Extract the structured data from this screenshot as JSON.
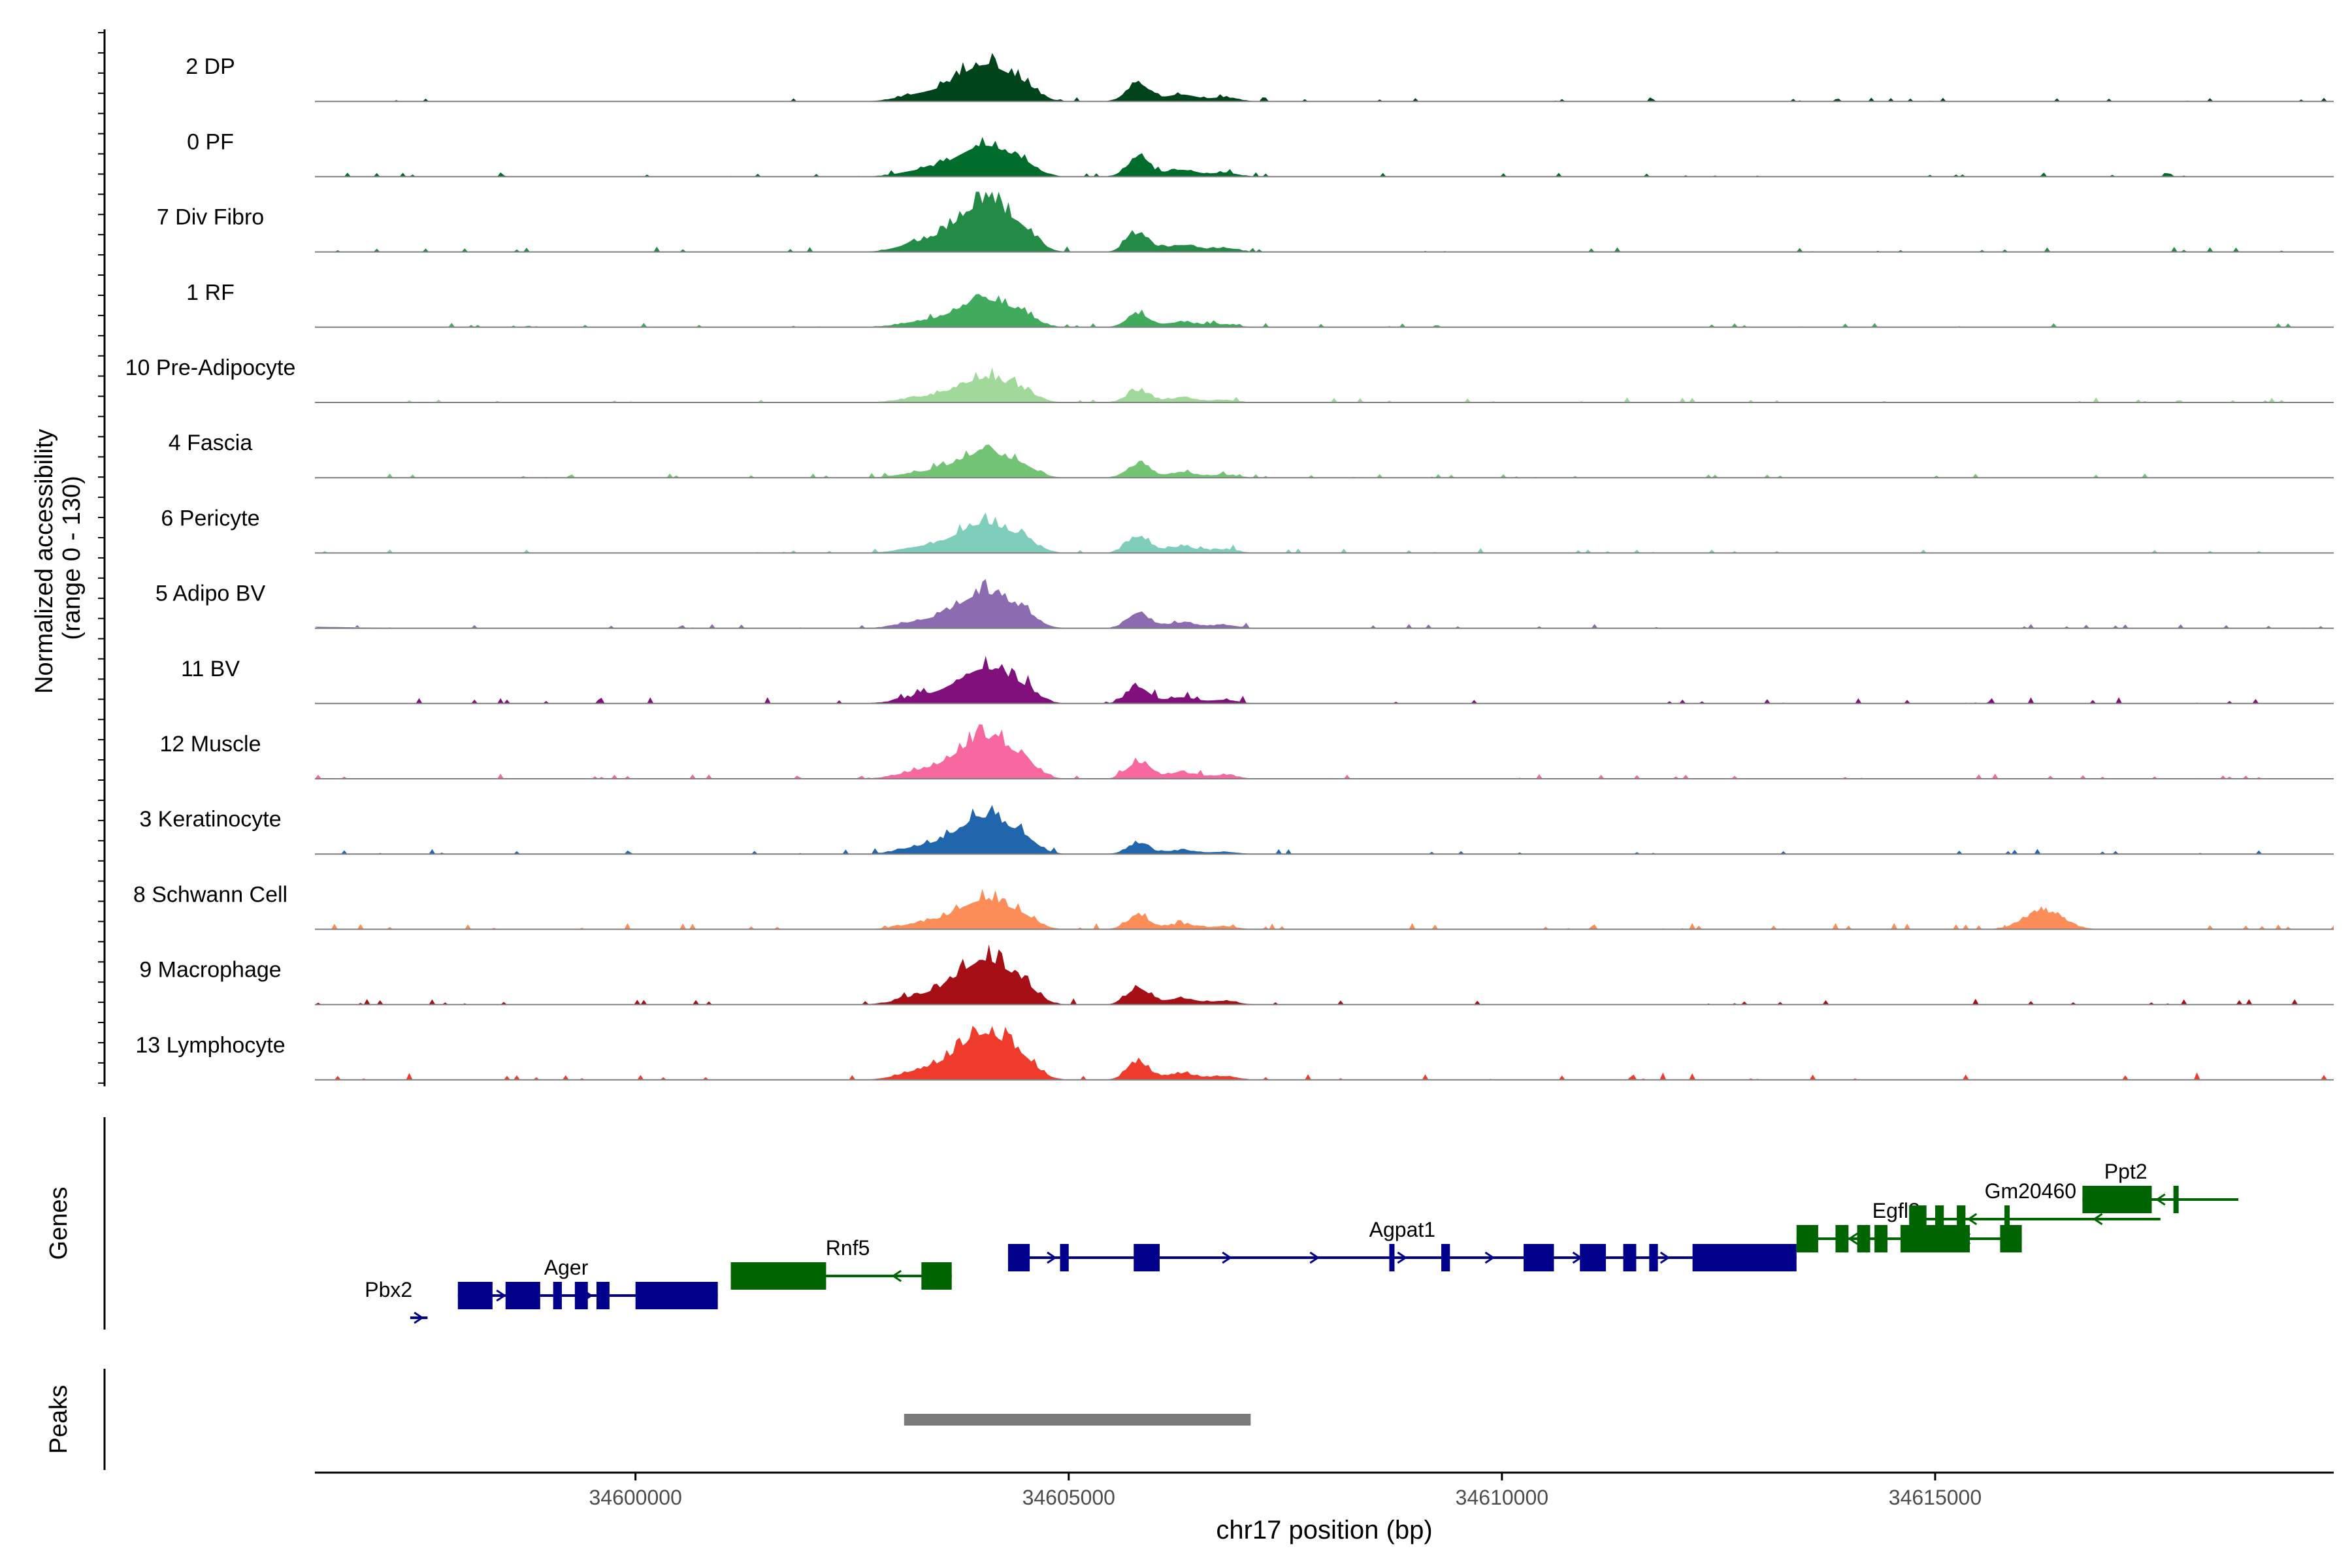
{
  "chart_data": {
    "type": "area",
    "title": "",
    "ylabel_line1": "Normalized accessibility",
    "ylabel_line2": "(range 0 - 130)",
    "yrange": [
      0,
      130
    ],
    "xlabel": "chr17 position (bp)",
    "xlim": [
      34596300,
      34619600
    ],
    "xticks": [
      {
        "value": 34600000,
        "label": "34600000"
      },
      {
        "value": 34605000,
        "label": "34605000"
      },
      {
        "value": 34610000,
        "label": "34610000"
      },
      {
        "value": 34615000,
        "label": "34615000"
      }
    ],
    "panel_labels": {
      "genes": "Genes",
      "peaks": "Peaks"
    },
    "tracks": [
      {
        "name": "2 DP",
        "color": "#00441b",
        "peak1": 1.0,
        "peak2": 0.55,
        "noise": 0.08
      },
      {
        "name": "0 PF",
        "color": "#006d2c",
        "peak1": 0.85,
        "peak2": 0.55,
        "noise": 0.08
      },
      {
        "name": "7 Div Fibro",
        "color": "#238b45",
        "peak1": 1.3,
        "peak2": 0.55,
        "noise": 0.1
      },
      {
        "name": "1 RF",
        "color": "#41ab5d",
        "peak1": 0.75,
        "peak2": 0.4,
        "noise": 0.08
      },
      {
        "name": "10 Pre-Adipocyte",
        "color": "#a1d99b",
        "peak1": 0.65,
        "peak2": 0.35,
        "noise": 0.1
      },
      {
        "name": "4 Fascia",
        "color": "#74c476",
        "peak1": 0.7,
        "peak2": 0.4,
        "noise": 0.08
      },
      {
        "name": "6 Pericyte",
        "color": "#7fcdbb",
        "peak1": 0.8,
        "peak2": 0.5,
        "noise": 0.1
      },
      {
        "name": "5 Adipo BV",
        "color": "#8c6bb1",
        "peak1": 0.95,
        "peak2": 0.45,
        "noise": 0.08
      },
      {
        "name": "11 BV",
        "color": "#810f7c",
        "peak1": 0.95,
        "peak2": 0.5,
        "noise": 0.12
      },
      {
        "name": "12 Muscle",
        "color": "#f768a1",
        "peak1": 1.1,
        "peak2": 0.5,
        "noise": 0.1
      },
      {
        "name": "3 Keratinocyte",
        "color": "#2166ac",
        "peak1": 1.0,
        "peak2": 0.3,
        "noise": 0.1
      },
      {
        "name": "8 Schwann Cell",
        "color": "#fc8d59",
        "peak1": 0.8,
        "peak2": 0.4,
        "noise": 0.12
      },
      {
        "name": "9 Macrophage",
        "color": "#a50f15",
        "peak1": 1.2,
        "peak2": 0.5,
        "noise": 0.12
      },
      {
        "name": "13 Lymphocyte",
        "color": "#ef3b2c",
        "peak1": 1.25,
        "peak2": 0.5,
        "noise": 0.14
      }
    ],
    "genes": [
      {
        "name": "Pbx2",
        "start": 34597400,
        "end": 34597600,
        "strand": "+",
        "row": 0,
        "color": "#00008b",
        "exons": [],
        "label_at": 34597150
      },
      {
        "name": "Ager",
        "start": 34597950,
        "end": 34600950,
        "strand": "+",
        "row": 1,
        "color": "#00008b",
        "exons": [
          [
            34597950,
            34598350
          ],
          [
            34598500,
            34598900
          ],
          [
            34599050,
            34599150
          ],
          [
            34599300,
            34599450
          ],
          [
            34599550,
            34599700
          ],
          [
            34600000,
            34600950
          ]
        ],
        "label_at": 34599200
      },
      {
        "name": "Rnf5",
        "start": 34601100,
        "end": 34603650,
        "strand": "-",
        "row": 2,
        "color": "#006400",
        "exons": [
          [
            34601100,
            34602200
          ],
          [
            34603300,
            34603650
          ]
        ],
        "label_at": 34602450
      },
      {
        "name": "Agpat1",
        "start": 34604300,
        "end": 34613400,
        "strand": "+",
        "row": 3,
        "color": "#00008b",
        "exons": [
          [
            34604300,
            34604550
          ],
          [
            34604900,
            34605000
          ],
          [
            34605750,
            34606050
          ],
          [
            34608700,
            34608750
          ],
          [
            34609300,
            34609400
          ],
          [
            34610250,
            34610600
          ],
          [
            34610900,
            34611200
          ],
          [
            34611400,
            34611550
          ],
          [
            34611700,
            34611800
          ],
          [
            34612200,
            34613400
          ]
        ],
        "label_at": 34608850
      },
      {
        "name": "Egfl8",
        "start": 34613400,
        "end": 34616000,
        "strand": "-",
        "row": 3,
        "color": "#006400",
        "exons": [
          [
            34613400,
            34613650
          ],
          [
            34613850,
            34614000
          ],
          [
            34614100,
            34614250
          ],
          [
            34614300,
            34614450
          ],
          [
            34614600,
            34615400
          ],
          [
            34615750,
            34616000
          ]
        ],
        "label_at": 34614550
      },
      {
        "name": "Gm20460",
        "start": 34614700,
        "end": 34617600,
        "strand": "-",
        "row": 4,
        "color": "#006400",
        "exons": [
          [
            34614700,
            34614900
          ],
          [
            34615000,
            34615100
          ],
          [
            34615250,
            34615350
          ],
          [
            34615800,
            34615850
          ]
        ],
        "label_at": 34616100
      },
      {
        "name": "Ppt2",
        "start": 34616700,
        "end": 34618500,
        "strand": "-",
        "row": 5,
        "color": "#006400",
        "exons": [
          [
            34616700,
            34617500
          ],
          [
            34617750,
            34617780
          ]
        ],
        "label_at": 34617200
      }
    ],
    "peaks": [
      {
        "start": 34603100,
        "end": 34607100,
        "color": "#7a7a7a"
      }
    ]
  }
}
